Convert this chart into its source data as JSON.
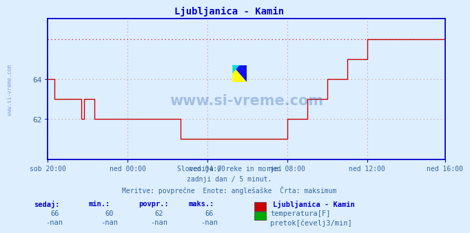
{
  "title": "Ljubljanica - Kamin",
  "title_color": "#0000cc",
  "bg_color": "#ddeeff",
  "plot_bg_color": "#ddeeff",
  "x_tick_labels": [
    "sob 20:00",
    "ned 00:00",
    "ned 04:00",
    "ned 08:00",
    "ned 12:00",
    "ned 16:00"
  ],
  "x_tick_positions": [
    0,
    48,
    96,
    144,
    192,
    239
  ],
  "y_ticks": [
    62,
    64
  ],
  "y_min": 60.0,
  "y_max": 67.0,
  "line_color": "#cc0000",
  "max_value": 66,
  "axis_color": "#0000cc",
  "grid_color": "#cc9999",
  "watermark_text": "www.si-vreme.com",
  "watermark_color": "#2255aa",
  "subtitle_lines": [
    "Slovenija / reke in morje.",
    "zadnji dan / 5 minut.",
    "Meritve: povprečne  Enote: anglešaške  Črta: maksimum"
  ],
  "subtitle_color": "#336699",
  "legend_title": "Ljubljanica - Kamin",
  "legend_items": [
    {
      "label": "temperatura[F]",
      "color": "#cc0000"
    },
    {
      "label": "pretok[čevelj3/min]",
      "color": "#00aa00"
    }
  ],
  "stats_headers": [
    "sedaj:",
    "min.:",
    "povpr.:",
    "maks.:"
  ],
  "stats_row1": [
    "66",
    "60",
    "62",
    "66"
  ],
  "stats_row2": [
    "-nan",
    "-nan",
    "-nan",
    "-nan"
  ],
  "stats_color": "#0000cc",
  "data_color": "#336699",
  "left_watermark": "www.si-vreme.com",
  "temp_data": [
    64,
    64,
    64,
    64,
    63,
    63,
    63,
    63,
    63,
    63,
    63,
    63,
    63,
    63,
    63,
    63,
    63,
    63,
    63,
    63,
    62,
    62,
    63,
    63,
    63,
    63,
    63,
    63,
    62,
    62,
    62,
    62,
    62,
    62,
    62,
    62,
    62,
    62,
    62,
    62,
    62,
    62,
    62,
    62,
    62,
    62,
    62,
    62,
    62,
    62,
    62,
    62,
    62,
    62,
    62,
    62,
    62,
    62,
    62,
    62,
    62,
    62,
    62,
    62,
    62,
    62,
    62,
    62,
    62,
    62,
    62,
    62,
    62,
    62,
    62,
    62,
    62,
    62,
    62,
    62,
    61,
    61,
    61,
    61,
    61,
    61,
    61,
    61,
    61,
    61,
    61,
    61,
    61,
    61,
    61,
    61,
    61,
    61,
    61,
    61,
    61,
    61,
    61,
    61,
    61,
    61,
    61,
    61,
    61,
    61,
    61,
    61,
    61,
    61,
    61,
    61,
    61,
    61,
    61,
    61,
    61,
    61,
    61,
    61,
    61,
    61,
    61,
    61,
    61,
    61,
    61,
    61,
    61,
    61,
    61,
    61,
    61,
    61,
    61,
    61,
    61,
    61,
    61,
    61,
    62,
    62,
    62,
    62,
    62,
    62,
    62,
    62,
    62,
    62,
    62,
    62,
    63,
    63,
    63,
    63,
    63,
    63,
    63,
    63,
    63,
    63,
    63,
    63,
    64,
    64,
    64,
    64,
    64,
    64,
    64,
    64,
    64,
    64,
    64,
    64,
    65,
    65,
    65,
    65,
    65,
    65,
    65,
    65,
    65,
    65,
    65,
    65,
    66,
    66,
    66,
    66,
    66,
    66,
    66,
    66,
    66,
    66,
    66,
    66,
    66,
    66,
    66,
    66,
    66,
    66,
    66,
    66,
    66,
    66,
    66,
    66,
    66,
    66,
    66,
    66,
    66,
    66,
    66,
    66,
    66,
    66,
    66,
    66,
    66,
    66,
    66,
    66,
    66,
    66,
    66,
    66,
    66,
    66,
    66,
    66
  ]
}
